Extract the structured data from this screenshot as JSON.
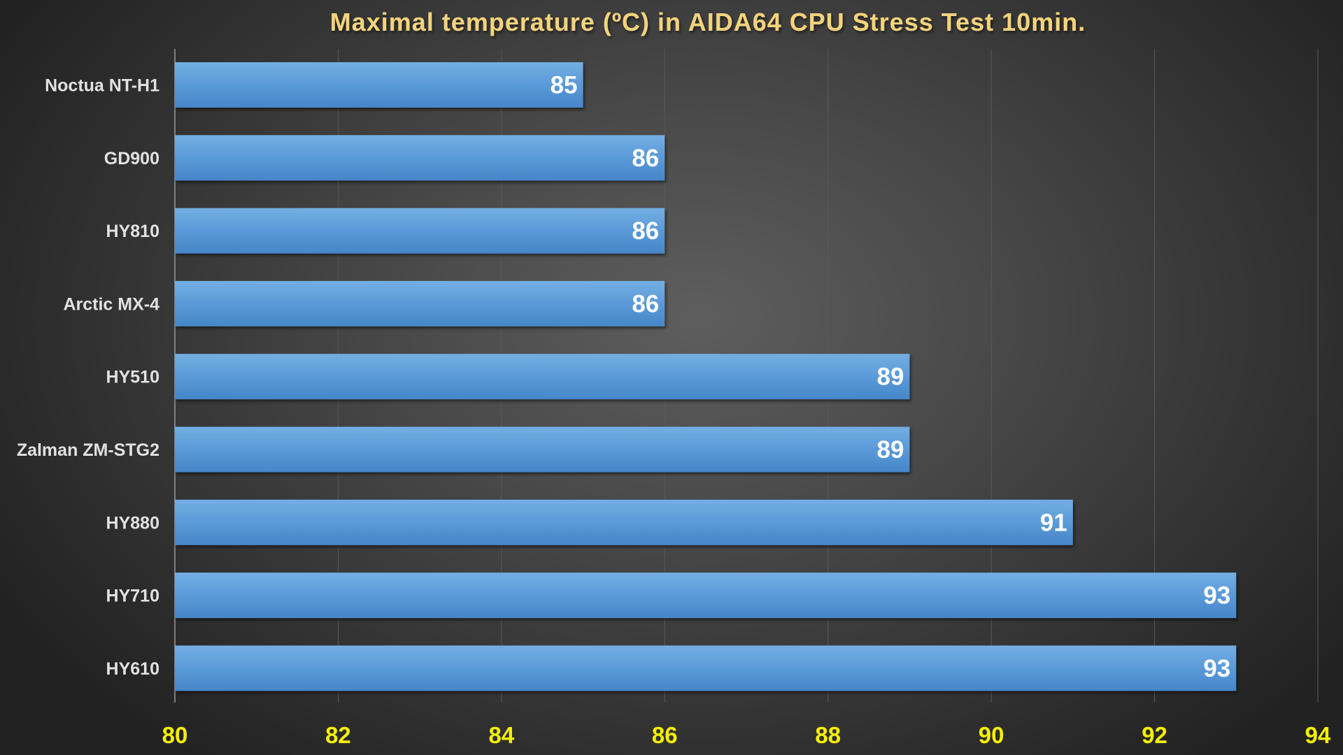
{
  "chart_data": {
    "type": "bar",
    "orientation": "horizontal",
    "title": "Maximal temperature (ºC) in AIDA64 CPU Stress Test 10min.",
    "categories": [
      "Noctua NT-H1",
      "GD900",
      "HY810",
      "Arctic MX-4",
      "HY510",
      "Zalman ZM-STG2",
      "HY880",
      "HY710",
      "HY610"
    ],
    "values": [
      85,
      86,
      86,
      86,
      89,
      89,
      91,
      93,
      93
    ],
    "xlim": [
      80,
      94
    ],
    "xticks": [
      80,
      82,
      84,
      86,
      88,
      90,
      92,
      94
    ],
    "xlabel": "",
    "ylabel": "",
    "grid": "vertical",
    "colors": {
      "bar": "#5b9bd5",
      "title": "#f3d37c",
      "ticks": "#f5f000",
      "labels": "#e2e2e2"
    }
  }
}
